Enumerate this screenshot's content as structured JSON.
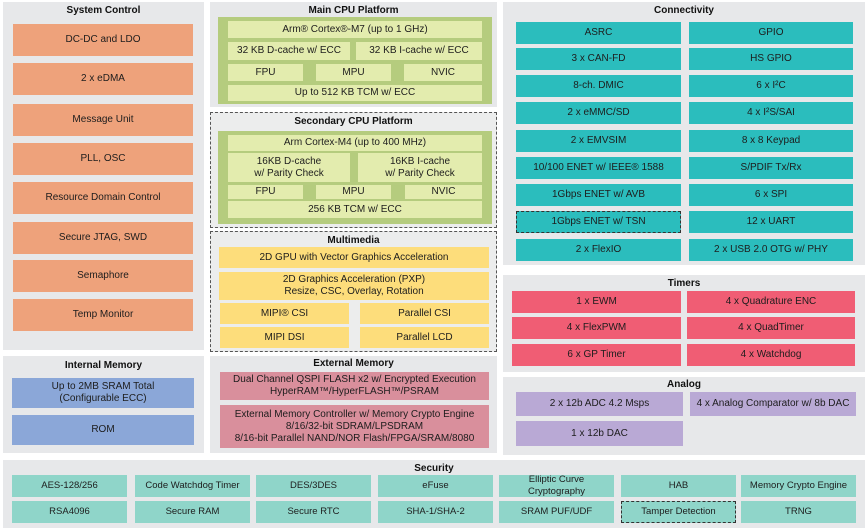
{
  "colors": {
    "system_control": "#eea27b",
    "cpu_platform": "#b5cc7e",
    "cpu_cell": "#e3ecae",
    "multimedia": "#fddd7b",
    "internal_memory": "#8ba7d8",
    "external_memory": "#d98f9c",
    "connectivity": "#2bbdbd",
    "timers": "#f05d74",
    "analog": "#b9a9d5",
    "security": "#8fd5c9",
    "panel": "#e7e8ea"
  },
  "system_control": {
    "title": "System Control",
    "items": [
      "DC-DC and LDO",
      "2 x eDMA",
      "Message Unit",
      "PLL, OSC",
      "Resource Domain Control",
      "Secure JTAG, SWD",
      "Semaphore",
      "Temp Monitor"
    ]
  },
  "main_cpu": {
    "title": "Main CPU Platform",
    "core": "Arm® Cortex®-M7 (up to 1 GHz)",
    "dcache": "32 KB D-cache w/ ECC",
    "icache": "32 KB I-cache w/ ECC",
    "fpu": "FPU",
    "mpu": "MPU",
    "nvic": "NVIC",
    "tcm": "Up to 512 KB TCM w/ ECC"
  },
  "secondary_cpu": {
    "title": "Secondary CPU Platform",
    "core": "Arm Cortex-M4 (up to 400 MHz)",
    "dcache": "16KB D-cache\nw/ Parity Check",
    "icache": "16KB I-cache\nw/ Parity Check",
    "fpu": "FPU",
    "mpu": "MPU",
    "nvic": "NVIC",
    "tcm": "256 KB TCM w/ ECC"
  },
  "multimedia": {
    "title": "Multimedia",
    "gpu": "2D GPU with Vector Graphics Acceleration",
    "pxp": "2D Graphics Acceleration (PXP)\nResize, CSC, Overlay, Rotation",
    "mipi_csi": "MIPI® CSI",
    "parallel_csi": "Parallel CSI",
    "mipi_dsi": "MIPI DSI",
    "parallel_lcd": "Parallel LCD"
  },
  "internal_memory": {
    "title": "Internal Memory",
    "items": [
      "Up to 2MB SRAM Total\n(Configurable ECC)",
      "ROM"
    ]
  },
  "external_memory": {
    "title": "External Memory",
    "items": [
      "Dual Channel QSPI FLASH x2 w/ Encrypted Execution\nHyperRAM™/HyperFLASH™/PSRAM",
      "External Memory Controller w/ Memory Crypto Engine\n8/16/32-bit SDRAM/LPSDRAM\n8/16-bit Parallel NAND/NOR Flash/FPGA/SRAM/8080"
    ]
  },
  "connectivity": {
    "title": "Connectivity",
    "items": [
      "ASRC",
      "GPIO",
      "3 x CAN-FD",
      "HS GPIO",
      "8-ch. DMIC",
      "6 x I²C",
      "2 x eMMC/SD",
      "4 x I²S/SAI",
      "2 x EMVSIM",
      "8 x 8 Keypad",
      "10/100 ENET w/ IEEE® 1588",
      "S/PDIF Tx/Rx",
      "1Gbps ENET w/ AVB",
      "6 x SPI",
      "1Gbps ENET w/ TSN",
      "12 x UART",
      "2 x FlexIO",
      "2 x USB 2.0 OTG w/ PHY"
    ]
  },
  "timers": {
    "title": "Timers",
    "items": [
      "1 x EWM",
      "4 x Quadrature ENC",
      "4 x FlexPWM",
      "4 x QuadTimer",
      "6 x GP Timer",
      "4 x Watchdog"
    ]
  },
  "analog": {
    "title": "Analog",
    "items": [
      "2 x 12b ADC 4.2 Msps",
      "4 x Analog Comparator w/ 8b DAC",
      "1 x 12b DAC"
    ]
  },
  "security": {
    "title": "Security",
    "items": [
      "AES-128/256",
      "Code Watchdog Timer",
      "DES/3DES",
      "eFuse",
      "Elliptic Curve Cryptography",
      "HAB",
      "Memory Crypto Engine",
      "RSA4096",
      "Secure RAM",
      "Secure RTC",
      "SHA-1/SHA-2",
      "SRAM PUF/UDF",
      "Tamper Detection",
      "TRNG"
    ]
  }
}
